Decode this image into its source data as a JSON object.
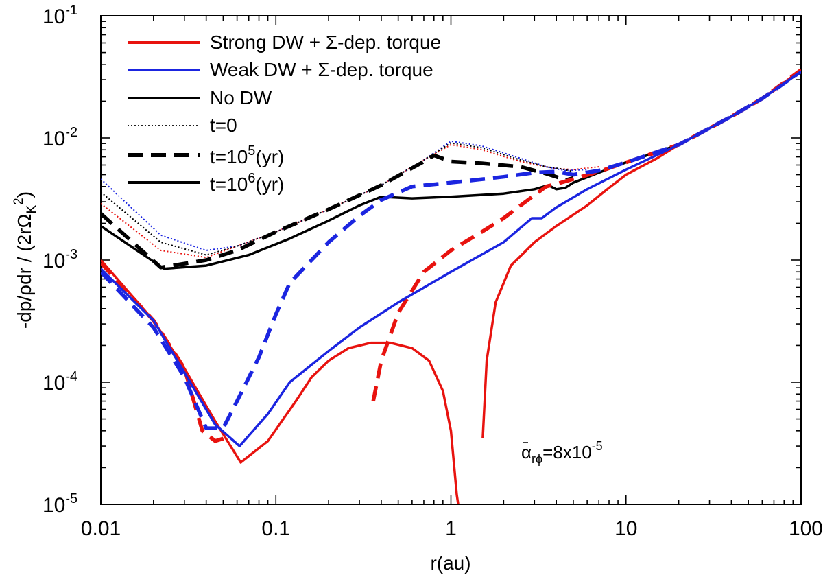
{
  "chart_data": {
    "type": "line",
    "xscale": "log",
    "yscale": "log",
    "xlim": [
      0.01,
      100
    ],
    "ylim": [
      1e-05,
      0.1
    ],
    "xlabel": "r(au)",
    "ylabel_parts": {
      "pre": "-dp/ρdr / (2rΩ",
      "sub": "K",
      "sup": "2",
      "post": ")"
    },
    "x_ticks": [
      {
        "value": 0.01,
        "label": "0.01"
      },
      {
        "value": 0.1,
        "label": "0.1"
      },
      {
        "value": 1,
        "label": "1"
      },
      {
        "value": 10,
        "label": "10"
      },
      {
        "value": 100,
        "label": "100"
      }
    ],
    "y_ticks": [
      {
        "value": 1e-05,
        "base": "10",
        "exp": "-5"
      },
      {
        "value": 0.0001,
        "base": "10",
        "exp": "-4"
      },
      {
        "value": 0.001,
        "base": "10",
        "exp": "-3"
      },
      {
        "value": 0.01,
        "base": "10",
        "exp": "-2"
      },
      {
        "value": 0.1,
        "base": "10",
        "exp": "-1"
      }
    ],
    "legend": [
      {
        "label": "Strong DW + Σ-dep. torque",
        "color": "#e8130f",
        "style": "solid"
      },
      {
        "label": "Weak DW + Σ-dep. torque",
        "color": "#1b25e0",
        "style": "solid"
      },
      {
        "label": "No DW",
        "color": "#000000",
        "style": "solid"
      },
      {
        "label": "t=0",
        "color": "#000000",
        "style": "dotted"
      },
      {
        "label_pre": "t=10",
        "label_sup": "5",
        "label_post": "(yr)",
        "color": "#000000",
        "style": "dashed"
      },
      {
        "label_pre": "t=10",
        "label_sup": "6",
        "label_post": "(yr)",
        "color": "#000000",
        "style": "solid"
      }
    ],
    "annotation": {
      "pre": "α",
      "sub": "rϕ",
      "post": "=8x10",
      "sup": "-5"
    },
    "series": [
      {
        "name": "Strong DW t=0",
        "color": "#e8130f",
        "style": "dotted",
        "points": [
          [
            0.01,
            0.0029
          ],
          [
            0.022,
            0.0012
          ],
          [
            0.04,
            0.00105
          ],
          [
            0.06,
            0.0013
          ],
          [
            0.1,
            0.0017
          ],
          [
            0.2,
            0.0026
          ],
          [
            0.4,
            0.0041
          ],
          [
            0.7,
            0.0066
          ],
          [
            1.0,
            0.0088
          ],
          [
            1.5,
            0.008
          ],
          [
            2.5,
            0.0064
          ],
          [
            3.5,
            0.0058
          ],
          [
            4.0,
            0.0056
          ],
          [
            5.0,
            0.0055
          ],
          [
            7.0,
            0.0058
          ]
        ]
      },
      {
        "name": "Weak DW t=0",
        "color": "#1b25e0",
        "style": "dotted",
        "points": [
          [
            0.01,
            0.0046
          ],
          [
            0.022,
            0.0016
          ],
          [
            0.04,
            0.0012
          ],
          [
            0.06,
            0.0013
          ],
          [
            0.1,
            0.0017
          ],
          [
            0.2,
            0.0026
          ],
          [
            0.4,
            0.0041
          ],
          [
            0.7,
            0.0066
          ],
          [
            1.0,
            0.0094
          ],
          [
            1.5,
            0.0086
          ],
          [
            2.5,
            0.0068
          ],
          [
            3.5,
            0.0058
          ],
          [
            4.5,
            0.0054
          ],
          [
            6.0,
            0.0055
          ]
        ]
      },
      {
        "name": "No DW t=0",
        "color": "#000000",
        "style": "dotted",
        "points": [
          [
            0.01,
            0.0036
          ],
          [
            0.022,
            0.0014
          ],
          [
            0.04,
            0.0011
          ],
          [
            0.06,
            0.0013
          ],
          [
            0.1,
            0.0017
          ],
          [
            0.2,
            0.0026
          ],
          [
            0.4,
            0.0041
          ],
          [
            0.7,
            0.0066
          ],
          [
            1.0,
            0.0091
          ],
          [
            1.5,
            0.0083
          ],
          [
            2.5,
            0.0066
          ],
          [
            3.5,
            0.0058
          ],
          [
            4.2,
            0.0056
          ],
          [
            5.0,
            0.0053
          ]
        ]
      },
      {
        "name": "No DW t=1e5",
        "color": "#000000",
        "style": "dashed",
        "points": [
          [
            0.01,
            0.0024
          ],
          [
            0.022,
            0.00087
          ],
          [
            0.04,
            0.001
          ],
          [
            0.06,
            0.0012
          ],
          [
            0.1,
            0.0017
          ],
          [
            0.2,
            0.0026
          ],
          [
            0.4,
            0.0041
          ],
          [
            0.7,
            0.0064
          ],
          [
            0.8,
            0.0072
          ],
          [
            1.0,
            0.0064
          ],
          [
            1.5,
            0.0062
          ],
          [
            2.5,
            0.0058
          ],
          [
            3.5,
            0.0051
          ],
          [
            4.0,
            0.0048
          ],
          [
            4.5,
            0.0045
          ],
          [
            5.0,
            0.0047
          ]
        ]
      },
      {
        "name": "No DW t=1e6",
        "color": "#000000",
        "style": "solid",
        "points": [
          [
            0.01,
            0.0019
          ],
          [
            0.023,
            0.00085
          ],
          [
            0.04,
            0.0009
          ],
          [
            0.07,
            0.0011
          ],
          [
            0.12,
            0.0015
          ],
          [
            0.2,
            0.0021
          ],
          [
            0.3,
            0.0028
          ],
          [
            0.4,
            0.0033
          ],
          [
            0.6,
            0.0032
          ],
          [
            1.0,
            0.0033
          ],
          [
            2.0,
            0.0035
          ],
          [
            3.0,
            0.0038
          ],
          [
            3.6,
            0.0041
          ],
          [
            4.0,
            0.0038
          ],
          [
            4.5,
            0.0039
          ],
          [
            5.0,
            0.0043
          ],
          [
            7.0,
            0.0052
          ],
          [
            10,
            0.0063
          ],
          [
            20,
            0.0088
          ],
          [
            40,
            0.015
          ],
          [
            60,
            0.021
          ],
          [
            100,
            0.035
          ]
        ]
      },
      {
        "name": "Strong DW t=1e5",
        "color": "#e8130f",
        "style": "dashed",
        "points": [
          [
            0.01,
            0.00095
          ],
          [
            0.02,
            0.00032
          ],
          [
            0.03,
            0.00013
          ],
          [
            0.038,
            4e-05
          ],
          [
            0.045,
            3.3e-05
          ],
          [
            0.055,
            3.6e-05
          ]
        ]
      },
      {
        "name": "Strong DW t=1e5 (outer)",
        "color": "#e8130f",
        "style": "dashed",
        "points": [
          [
            0.36,
            7e-05
          ],
          [
            0.4,
            0.00015
          ],
          [
            0.5,
            0.00037
          ],
          [
            0.7,
            0.0008
          ],
          [
            1.0,
            0.0012
          ],
          [
            1.5,
            0.0017
          ],
          [
            2.0,
            0.0022
          ],
          [
            2.5,
            0.0028
          ],
          [
            3.0,
            0.0034
          ],
          [
            3.5,
            0.004
          ],
          [
            4.0,
            0.0042
          ],
          [
            5.0,
            0.0046
          ],
          [
            7.0,
            0.0053
          ],
          [
            10,
            0.0063
          ],
          [
            20,
            0.0088
          ],
          [
            40,
            0.015
          ],
          [
            60,
            0.021
          ],
          [
            100,
            0.036
          ]
        ]
      },
      {
        "name": "Weak DW t=1e5",
        "color": "#1b25e0",
        "style": "dashed",
        "points": [
          [
            0.01,
            0.0008
          ],
          [
            0.02,
            0.00028
          ],
          [
            0.03,
            0.00011
          ],
          [
            0.04,
            4.2e-05
          ],
          [
            0.05,
            4.2e-05
          ],
          [
            0.06,
            7e-05
          ],
          [
            0.08,
            0.00016
          ],
          [
            0.1,
            0.00036
          ],
          [
            0.12,
            0.00065
          ],
          [
            0.2,
            0.0014
          ],
          [
            0.3,
            0.0023
          ],
          [
            0.4,
            0.0031
          ],
          [
            0.6,
            0.004
          ],
          [
            1.0,
            0.0043
          ],
          [
            2.0,
            0.0048
          ],
          [
            3.0,
            0.0052
          ],
          [
            4.0,
            0.0053
          ],
          [
            5.0,
            0.005
          ],
          [
            7.0,
            0.0054
          ],
          [
            10,
            0.0063
          ],
          [
            20,
            0.0088
          ],
          [
            40,
            0.015
          ],
          [
            60,
            0.021
          ],
          [
            100,
            0.035
          ]
        ]
      },
      {
        "name": "Strong DW t=1e6 (inner)",
        "color": "#e8130f",
        "style": "solid",
        "points": [
          [
            0.01,
            0.001
          ],
          [
            0.02,
            0.00032
          ],
          [
            0.03,
            0.00013
          ],
          [
            0.045,
            4.8e-05
          ],
          [
            0.063,
            2.2e-05
          ],
          [
            0.09,
            3.3e-05
          ],
          [
            0.13,
            7e-05
          ],
          [
            0.16,
            0.00011
          ],
          [
            0.2,
            0.00015
          ],
          [
            0.26,
            0.00019
          ],
          [
            0.35,
            0.00021
          ],
          [
            0.45,
            0.00021
          ],
          [
            0.6,
            0.00019
          ],
          [
            0.75,
            0.00015
          ],
          [
            0.9,
            8.5e-05
          ],
          [
            1.0,
            4e-05
          ],
          [
            1.08,
            1.2e-05
          ],
          [
            1.1,
            1e-05
          ]
        ]
      },
      {
        "name": "Strong DW t=1e6 (outer)",
        "color": "#e8130f",
        "style": "solid",
        "points": [
          [
            1.52,
            3.5e-05
          ],
          [
            1.6,
            0.00015
          ],
          [
            1.8,
            0.00045
          ],
          [
            2.2,
            0.0009
          ],
          [
            3.0,
            0.0014
          ],
          [
            4.0,
            0.0019
          ],
          [
            6.0,
            0.0028
          ],
          [
            8.0,
            0.0039
          ],
          [
            10,
            0.005
          ],
          [
            15,
            0.0068
          ],
          [
            20,
            0.0088
          ],
          [
            40,
            0.015
          ],
          [
            60,
            0.021
          ],
          [
            100,
            0.036
          ]
        ]
      },
      {
        "name": "Weak DW t=1e6",
        "color": "#1b25e0",
        "style": "solid",
        "points": [
          [
            0.01,
            0.00085
          ],
          [
            0.02,
            0.00032
          ],
          [
            0.03,
            0.00012
          ],
          [
            0.045,
            4.5e-05
          ],
          [
            0.062,
            3e-05
          ],
          [
            0.09,
            5.5e-05
          ],
          [
            0.12,
            0.0001
          ],
          [
            0.2,
            0.00018
          ],
          [
            0.3,
            0.00028
          ],
          [
            0.5,
            0.00045
          ],
          [
            1.0,
            0.0008
          ],
          [
            2.0,
            0.0014
          ],
          [
            2.9,
            0.0022
          ],
          [
            3.3,
            0.0022
          ],
          [
            4.0,
            0.0027
          ],
          [
            6.0,
            0.0038
          ],
          [
            10,
            0.0055
          ],
          [
            20,
            0.0088
          ],
          [
            40,
            0.015
          ],
          [
            60,
            0.021
          ],
          [
            100,
            0.035
          ]
        ]
      }
    ]
  }
}
